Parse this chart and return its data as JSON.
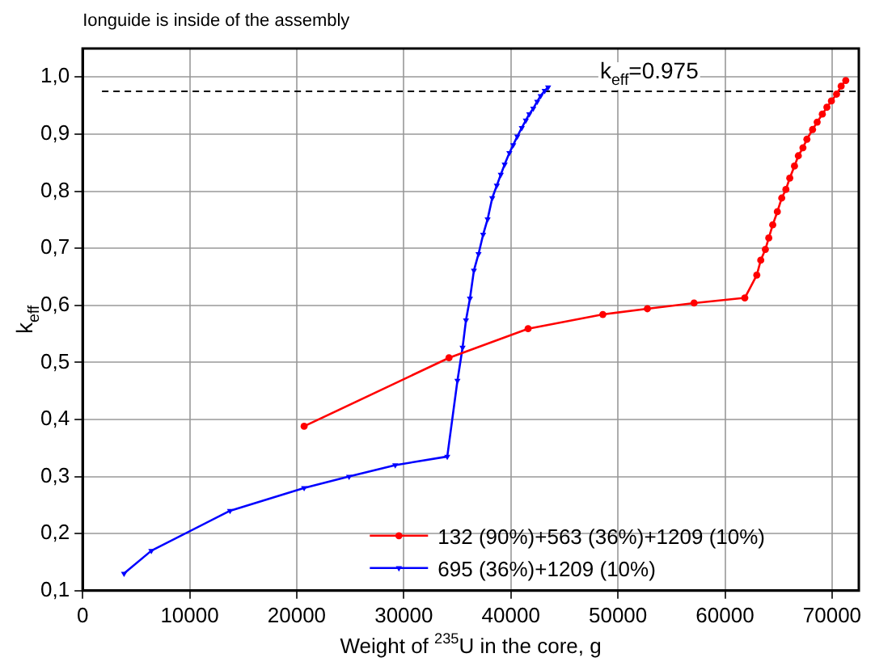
{
  "chart_data": {
    "type": "line",
    "title": "Ionguide is inside of the assembly",
    "xlabel": "Weight of $^{235}$U in the core, g",
    "ylabel": "k$_{eff}$",
    "xlim": [
      0,
      72500
    ],
    "xticks": [
      0,
      10000,
      20000,
      30000,
      40000,
      50000,
      60000,
      70000
    ],
    "ylim": [
      0.1,
      1.05
    ],
    "yticks": [
      {
        "value": 0.1,
        "label": "0,1"
      },
      {
        "value": 0.2,
        "label": "0,2"
      },
      {
        "value": 0.3,
        "label": "0,3"
      },
      {
        "value": 0.4,
        "label": "0,4"
      },
      {
        "value": 0.5,
        "label": "0,5"
      },
      {
        "value": 0.6,
        "label": "0,6"
      },
      {
        "value": 0.7,
        "label": "0,7"
      },
      {
        "value": 0.8,
        "label": "0,8"
      },
      {
        "value": 0.9,
        "label": "0,9"
      },
      {
        "value": 1.0,
        "label": "1,0"
      }
    ],
    "grid": true,
    "legend": "bottom right",
    "line_style": "solid",
    "ref_lines": [
      {
        "axis": "y",
        "value": 0.975,
        "label": "k$_{eff}$=0.975",
        "line_style": "dashed",
        "color": "#000000"
      }
    ],
    "series": [
      {
        "name": "132 (90%)+563 (36%)+1209 (10%)",
        "color": "#ff0000",
        "marker": "circle",
        "x": [
          20690,
          34220,
          41610,
          48590,
          52750,
          57110,
          61850,
          62970,
          63340,
          63770,
          64090,
          64460,
          64890,
          65300,
          65690,
          66050,
          66490,
          66850,
          67280,
          67650,
          68180,
          68610,
          69090,
          69520,
          69940,
          70420,
          70850,
          71280
        ],
        "values": [
          0.388,
          0.508,
          0.559,
          0.584,
          0.594,
          0.604,
          0.613,
          0.653,
          0.679,
          0.698,
          0.718,
          0.741,
          0.764,
          0.788,
          0.803,
          0.823,
          0.844,
          0.862,
          0.876,
          0.891,
          0.908,
          0.921,
          0.935,
          0.947,
          0.958,
          0.97,
          0.984,
          0.994
        ]
      },
      {
        "name": "695 (36%)+1209 (10%)",
        "color": "#0000ff",
        "marker": "triangle",
        "x": [
          3870,
          6420,
          13770,
          20690,
          24890,
          29200,
          34060,
          35010,
          35490,
          35810,
          36180,
          36550,
          36980,
          37410,
          37830,
          38260,
          38690,
          39060,
          39420,
          39860,
          40220,
          40600,
          41020,
          41400,
          41720,
          42090,
          42460,
          42780,
          43160,
          43480
        ],
        "values": [
          0.13,
          0.17,
          0.24,
          0.28,
          0.3,
          0.32,
          0.335,
          0.468,
          0.526,
          0.574,
          0.612,
          0.661,
          0.69,
          0.724,
          0.751,
          0.788,
          0.81,
          0.829,
          0.847,
          0.867,
          0.881,
          0.896,
          0.911,
          0.924,
          0.935,
          0.945,
          0.957,
          0.967,
          0.976,
          0.982
        ]
      }
    ]
  }
}
